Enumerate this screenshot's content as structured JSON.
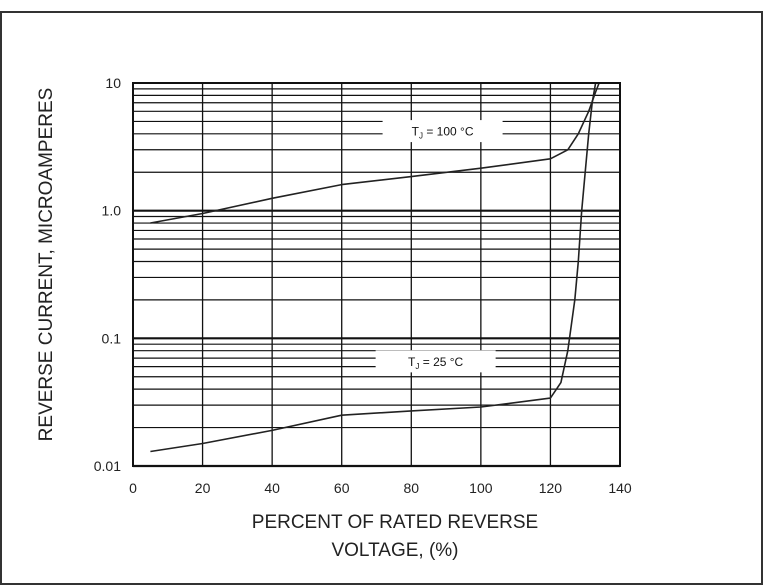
{
  "chart_data": {
    "type": "line",
    "title": "",
    "xlabel_line1": "PERCENT OF RATED REVERSE",
    "xlabel_line2": "VOLTAGE, (%)",
    "ylabel": "REVERSE CURRENT, MICROAMPERES",
    "x_scale": "linear",
    "y_scale": "log",
    "xlim": [
      0,
      140
    ],
    "ylim": [
      0.01,
      10
    ],
    "x_ticks": [
      0,
      20,
      40,
      60,
      80,
      100,
      120,
      140
    ],
    "x_tick_labels": [
      "0",
      "20",
      "40",
      "60",
      "80",
      "100",
      "120",
      "140"
    ],
    "y_ticks": [
      0.01,
      0.1,
      1.0,
      10
    ],
    "y_tick_labels": [
      "0.01",
      "0.1",
      "1.0",
      "10"
    ],
    "grid": true,
    "series": [
      {
        "name": "TJ = 100 °C",
        "label_prefix": "T",
        "label_sub": "J",
        "label_suffix": " = 100 °C",
        "x": [
          5,
          20,
          40,
          60,
          80,
          100,
          120,
          125,
          128,
          131,
          133,
          134
        ],
        "y": [
          0.8,
          0.95,
          1.25,
          1.6,
          1.85,
          2.15,
          2.55,
          3.0,
          4.0,
          6.0,
          8.5,
          10
        ]
      },
      {
        "name": "TJ = 25 °C",
        "label_prefix": "T",
        "label_sub": "J",
        "label_suffix": " = 25 °C",
        "x": [
          5,
          20,
          40,
          60,
          80,
          100,
          120,
          123,
          125,
          127,
          128,
          129,
          130,
          131,
          132,
          133
        ],
        "y": [
          0.013,
          0.015,
          0.019,
          0.025,
          0.027,
          0.029,
          0.034,
          0.045,
          0.08,
          0.2,
          0.4,
          1.0,
          2.0,
          4.0,
          7.0,
          10
        ]
      }
    ]
  }
}
